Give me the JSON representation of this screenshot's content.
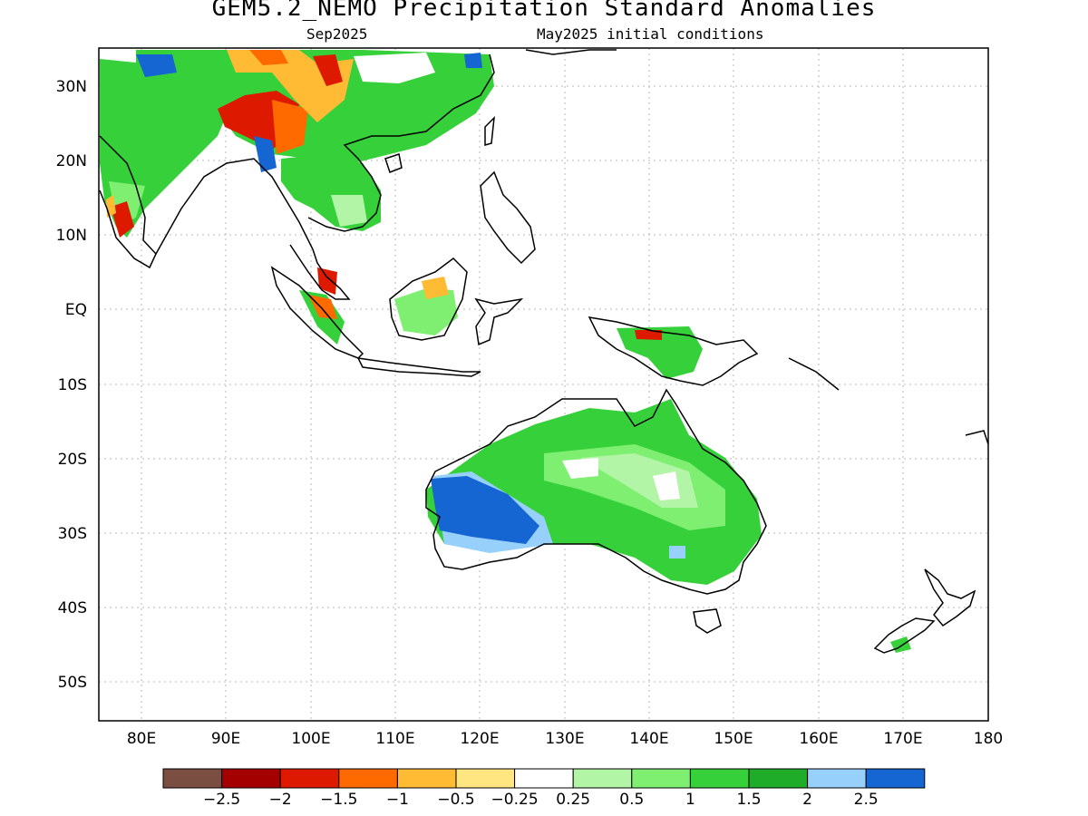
{
  "title": "GEM5.2_NEMO Precipitation Standard Anomalies",
  "subtitle_left": "Sep2025",
  "subtitle_right": "May2025 initial conditions",
  "lon_labels": [
    "80E",
    "90E",
    "100E",
    "110E",
    "120E",
    "130E",
    "140E",
    "150E",
    "160E",
    "170E",
    "180"
  ],
  "lat_labels": [
    "30N",
    "20N",
    "10N",
    "EQ",
    "10S",
    "20S",
    "30S",
    "40S",
    "50S"
  ],
  "colorbar": {
    "colors": [
      "#7a4e40",
      "#a50000",
      "#dd1a00",
      "#ff6a00",
      "#ffbb33",
      "#ffe680",
      "#ffffff",
      "#b3f5a6",
      "#7fef72",
      "#36d03a",
      "#1fac28",
      "#97d1fb",
      "#1565d3"
    ],
    "labels": [
      "−2.5",
      "−2",
      "−1.5",
      "−1",
      "−0.5",
      "−0.25",
      "0.25",
      "0.5",
      "1",
      "1.5",
      "2",
      "2.5"
    ]
  }
}
